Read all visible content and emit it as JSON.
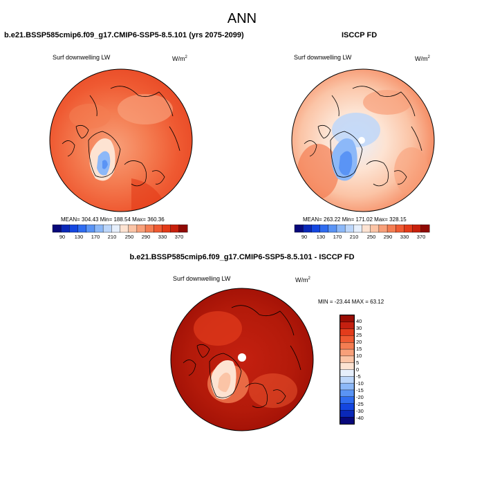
{
  "title": "ANN",
  "panels": [
    {
      "case_title": "b.e21.BSSP585cmip6.f09_g17.CMIP6-SSP5-8.5.101 (yrs 2075-2099)",
      "variable": "Surf downwelling LW",
      "units_base": "W/m",
      "units_exp": "2",
      "stats": "MEAN= 304.43  Min= 188.54  Max= 360.36"
    },
    {
      "case_title": "ISCCP FD",
      "variable": "Surf downwelling LW",
      "units_base": "W/m",
      "units_exp": "2",
      "stats": "MEAN= 263.22  Min= 171.02  Max= 328.15"
    },
    {
      "case_title": "b.e21.BSSP585cmip6.f09_g17.CMIP6-SSP5-8.5.101 - ISCCP FD",
      "variable": "Surf downwelling LW",
      "units_base": "W/m",
      "units_exp": "2",
      "stats": "MIN = -23.44 MAX =  63.12"
    }
  ],
  "colorbar_abs": {
    "ticks": [
      "90",
      "130",
      "170",
      "210",
      "250",
      "290",
      "330",
      "370"
    ],
    "colors": [
      "#08087a",
      "#0a28b8",
      "#1446e0",
      "#2f6cf0",
      "#5a94f5",
      "#8cb8f8",
      "#bcd6fa",
      "#e6effc",
      "#fde3d2",
      "#fbc4a6",
      "#f8a07a",
      "#f47d52",
      "#ef5a32",
      "#e33a18",
      "#c8200c",
      "#8f0a04"
    ]
  },
  "colorbar_diff": {
    "labels": [
      "40",
      "30",
      "25",
      "20",
      "15",
      "10",
      "5",
      "0",
      "-5",
      "-10",
      "-15",
      "-20",
      "-25",
      "-30",
      "-40"
    ],
    "colors": [
      "#9a0d04",
      "#c42010",
      "#e33c1c",
      "#ef5a32",
      "#f47d52",
      "#f8a07a",
      "#fbc4a6",
      "#fde3d2",
      "#e6effc",
      "#bcd6fa",
      "#8cb8f8",
      "#5a94f5",
      "#2f6cf0",
      "#1446e0",
      "#0a28b8",
      "#08087a"
    ]
  }
}
